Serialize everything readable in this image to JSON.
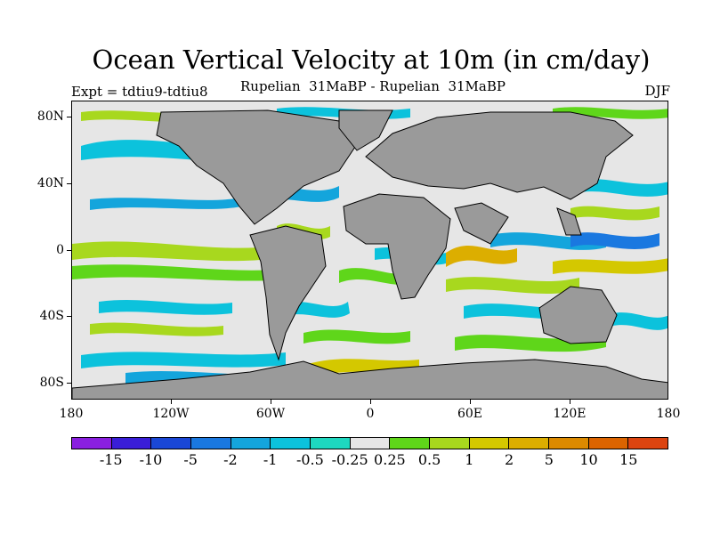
{
  "title": "Ocean Vertical Velocity at 10m (in cm/day)",
  "subtitle": "Rupelian  31MaBP - Rupelian  31MaBP",
  "expt": "Expt = tdtiu9-tdtiu8",
  "season": "DJF",
  "y_axis": {
    "labels": [
      "80N",
      "40N",
      "0",
      "40S",
      "80S"
    ],
    "values": [
      80,
      40,
      0,
      -40,
      -80
    ]
  },
  "x_axis": {
    "labels": [
      "180",
      "120W",
      "60W",
      "0",
      "60E",
      "120E",
      "180"
    ],
    "values": [
      -180,
      -120,
      -60,
      0,
      60,
      120,
      180
    ]
  },
  "colors": {
    "land": "#9a9a9a",
    "neutral": "#e6e6e6",
    "colorbar": [
      "#8a1fe0",
      "#3a1ed8",
      "#1a47d6",
      "#1a78e0",
      "#14a5dc",
      "#0cc2dc",
      "#1ed8c0",
      "#e6e6e6",
      "#5fd61a",
      "#a8d81e",
      "#d4c800",
      "#dcae00",
      "#dc8a00",
      "#dc6400",
      "#dc4410"
    ]
  },
  "colorbar_labels": [
    "-15",
    "-10",
    "-5",
    "-2",
    "-1",
    "-0.5",
    "-0.25",
    "0.25",
    "0.5",
    "1",
    "2",
    "5",
    "10",
    "15"
  ]
}
